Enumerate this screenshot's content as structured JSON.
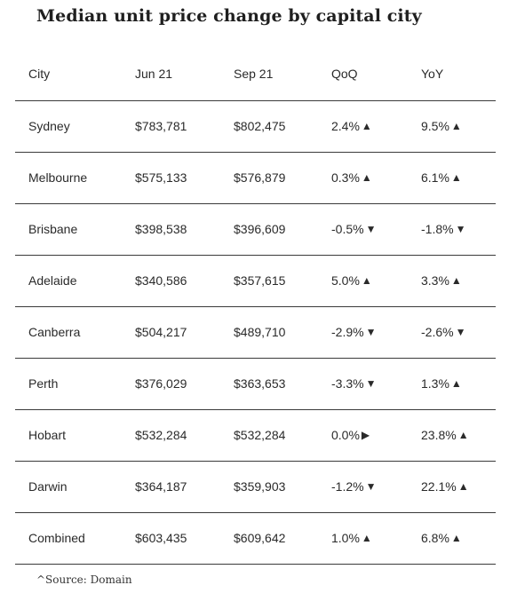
{
  "title": "Median unit price change by capital city",
  "columns": [
    "City",
    "Jun 21",
    "Sep 21",
    "QoQ",
    "YoY"
  ],
  "rows": [
    {
      "city": "Sydney",
      "jun": "$783,781",
      "sep": "$802,475",
      "qoq": "2.4%",
      "qoq_dir": "up",
      "yoy": "9.5%",
      "yoy_dir": "up"
    },
    {
      "city": "Melbourne",
      "jun": "$575,133",
      "sep": "$576,879",
      "qoq": "0.3%",
      "qoq_dir": "up",
      "yoy": "6.1%",
      "yoy_dir": "up"
    },
    {
      "city": "Brisbane",
      "jun": "$398,538",
      "sep": "$396,609",
      "qoq": "-0.5%",
      "qoq_dir": "down",
      "yoy": "-1.8%",
      "yoy_dir": "down"
    },
    {
      "city": "Adelaide",
      "jun": "$340,586",
      "sep": "$357,615",
      "qoq": "5.0%",
      "qoq_dir": "up",
      "yoy": "3.3%",
      "yoy_dir": "up"
    },
    {
      "city": "Canberra",
      "jun": "$504,217",
      "sep": "$489,710",
      "qoq": "-2.9%",
      "qoq_dir": "down",
      "yoy": "-2.6%",
      "yoy_dir": "down"
    },
    {
      "city": "Perth",
      "jun": "$376,029",
      "sep": "$363,653",
      "qoq": "-3.3%",
      "qoq_dir": "down",
      "yoy": "1.3%",
      "yoy_dir": "up"
    },
    {
      "city": "Hobart",
      "jun": "$532,284",
      "sep": "$532,284",
      "qoq": "0.0%",
      "qoq_dir": "flat",
      "yoy": "23.8%",
      "yoy_dir": "up"
    },
    {
      "city": "Darwin",
      "jun": "$364,187",
      "sep": "$359,903",
      "qoq": "-1.2%",
      "qoq_dir": "down",
      "yoy": "22.1%",
      "yoy_dir": "up"
    },
    {
      "city": "Combined",
      "jun": "$603,435",
      "sep": "$609,642",
      "qoq": "1.0%",
      "qoq_dir": "up",
      "yoy": "6.8%",
      "yoy_dir": "up"
    }
  ],
  "arrow_icons": {
    "up": "triangle-up-icon",
    "down": "triangle-down-icon",
    "flat": "triangle-right-icon"
  },
  "source": "^Source: Domain"
}
